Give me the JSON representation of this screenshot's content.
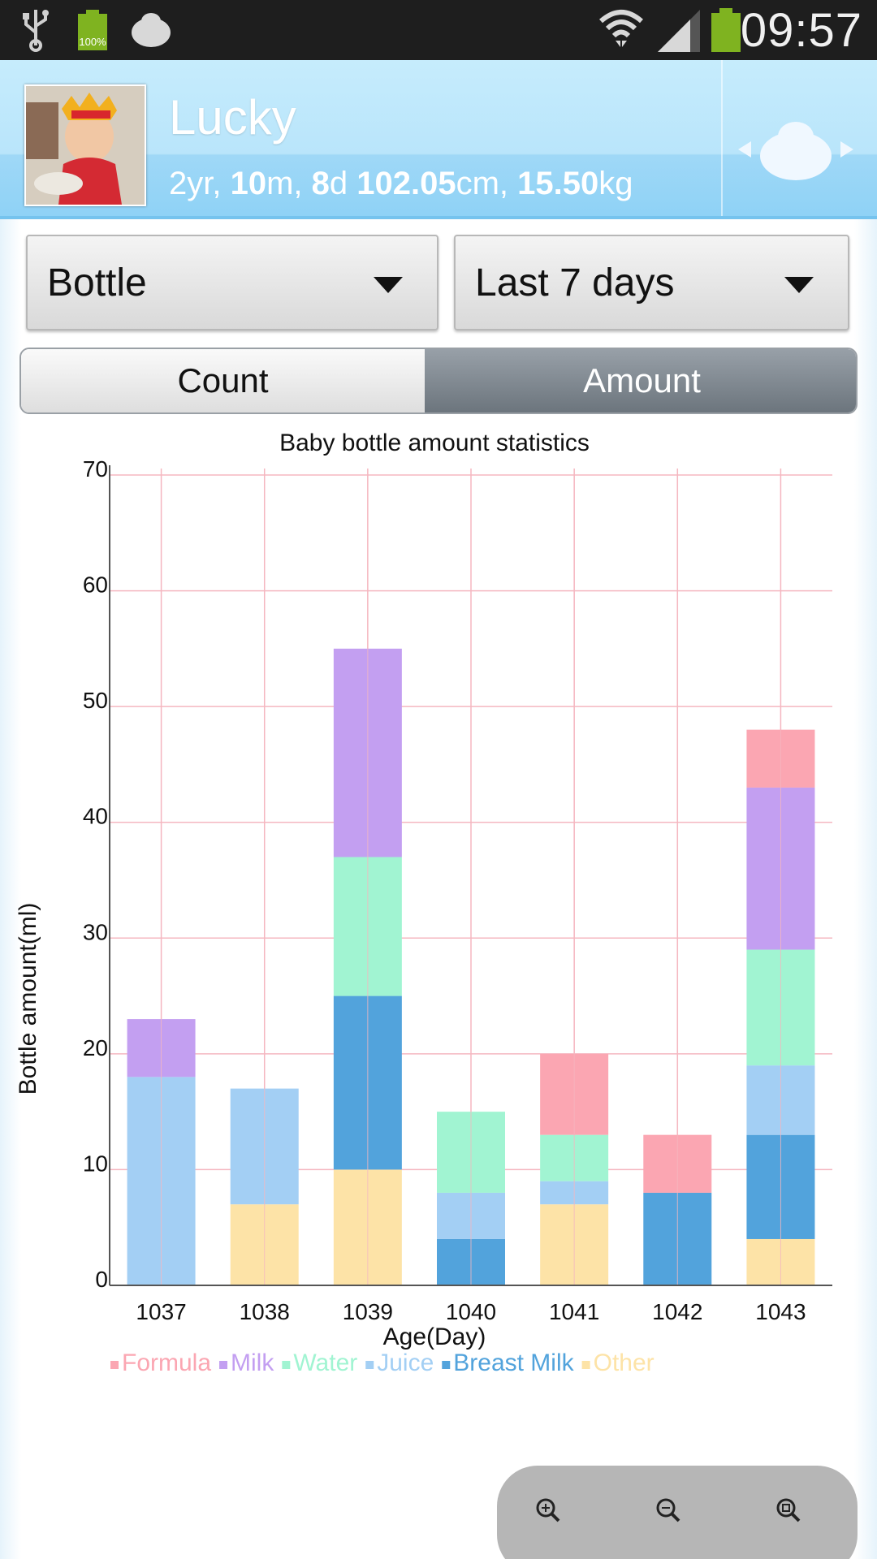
{
  "status_bar": {
    "time": "09:57",
    "battery_small_label": "100%",
    "icons": [
      "usb-icon",
      "battery-full-icon",
      "baby-app-icon",
      "wifi-icon",
      "signal-icon",
      "battery-icon"
    ]
  },
  "header": {
    "name": "Lucky",
    "age_yr": "2",
    "age_yr_unit": "yr, ",
    "age_m": "10",
    "age_m_unit": "m, ",
    "age_d": "8",
    "age_d_unit": "d ",
    "height": "102.05",
    "height_unit": "cm, ",
    "weight": "15.50",
    "weight_unit": "kg"
  },
  "filters": {
    "type_selected": "Bottle",
    "range_selected": "Last 7 days"
  },
  "toggle": {
    "count_label": "Count",
    "amount_label": "Amount",
    "selected": "Amount"
  },
  "chart_data": {
    "type": "bar",
    "stacked": true,
    "title": "Baby bottle amount statistics",
    "xlabel": "Age(Day)",
    "ylabel": "Bottle amount(ml)",
    "ylim": [
      0,
      70
    ],
    "yticks": [
      0,
      10,
      20,
      30,
      40,
      50,
      60,
      70
    ],
    "grid": true,
    "legend_position": "bottom-left",
    "categories": [
      "1037",
      "1038",
      "1039",
      "1040",
      "1041",
      "1042",
      "1043"
    ],
    "series": [
      {
        "name": "Other",
        "color": "#fde3a7",
        "values": [
          0,
          7,
          10,
          0,
          7,
          0,
          4
        ]
      },
      {
        "name": "Breast Milk",
        "color": "#52a3dc",
        "values": [
          0,
          0,
          15,
          4,
          0,
          8,
          9
        ]
      },
      {
        "name": "Juice",
        "color": "#a3cff4",
        "values": [
          18,
          10,
          0,
          4,
          2,
          0,
          6
        ]
      },
      {
        "name": "Water",
        "color": "#a1f4d2",
        "values": [
          0,
          0,
          12,
          7,
          4,
          0,
          10
        ]
      },
      {
        "name": "Milk",
        "color": "#c39ff1",
        "values": [
          5,
          0,
          18,
          0,
          0,
          0,
          14
        ]
      },
      {
        "name": "Formula",
        "color": "#fba6b2",
        "values": [
          0,
          0,
          0,
          0,
          7,
          5,
          5
        ]
      }
    ],
    "legend_order": [
      "Formula",
      "Milk",
      "Water",
      "Juice",
      "Breast Milk",
      "Other"
    ]
  },
  "zoom": {
    "buttons": [
      "zoom-in-icon",
      "zoom-out-icon",
      "zoom-reset-icon"
    ]
  }
}
